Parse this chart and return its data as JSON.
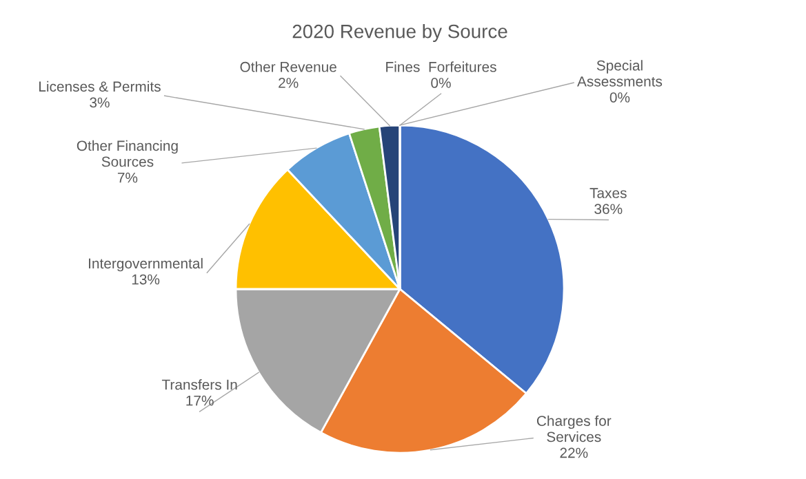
{
  "chart_data": {
    "type": "pie",
    "title": "2020 Revenue by Source",
    "categories": [
      "Taxes",
      "Charges for Services",
      "Transfers In",
      "Intergovernmental",
      "Other Financing Sources",
      "Licenses & Permits",
      "Other Revenue",
      "Fines  Forfeitures",
      "Special Assessments"
    ],
    "values": [
      36,
      22,
      17,
      13,
      7,
      3,
      2,
      0,
      0
    ],
    "value_labels": [
      "36%",
      "22%",
      "17%",
      "13%",
      "7%",
      "3%",
      "2%",
      "0%",
      "0%"
    ],
    "colors": [
      "#4472c4",
      "#ed7d31",
      "#a5a5a5",
      "#ffc000",
      "#5b9bd5",
      "#70ad47",
      "#264478",
      "#9e480e",
      "#636363"
    ],
    "legend": false
  }
}
